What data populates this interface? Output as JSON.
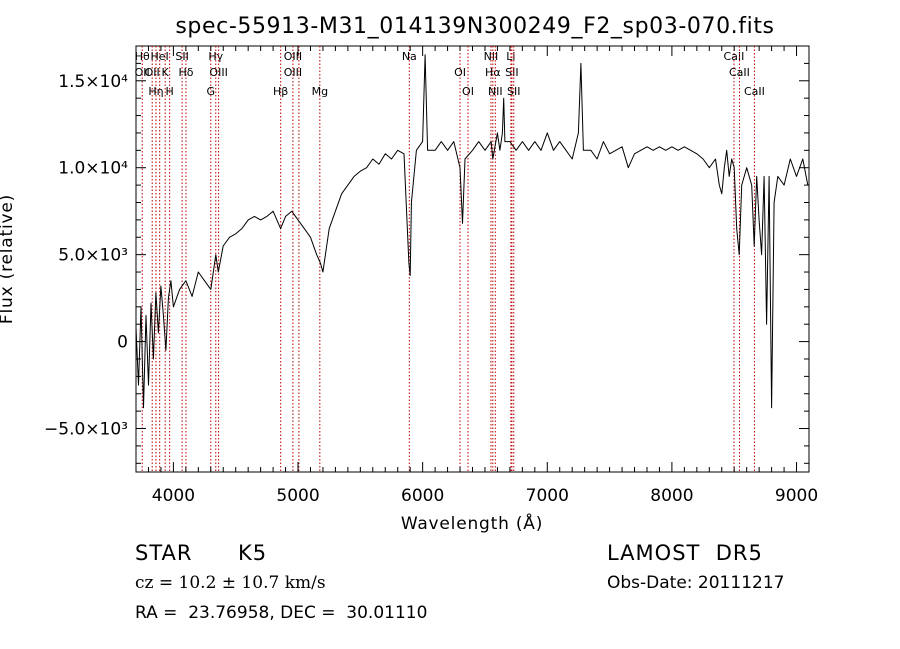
{
  "chart_data": {
    "type": "line",
    "title": "spec-55913-M31_014139N300249_F2_sp03-070.fits",
    "xlabel": "Wavelength (Å)",
    "ylabel": "Flux (relative)",
    "xlim": [
      3700,
      9100
    ],
    "ylim": [
      -7500,
      17000
    ],
    "x_ticks": [
      4000,
      5000,
      6000,
      7000,
      8000,
      9000
    ],
    "y_ticks": [
      {
        "value": -5000,
        "label": "−5.0×10³"
      },
      {
        "value": 0,
        "label": "0"
      },
      {
        "value": 5000,
        "label": "5.0×10³"
      },
      {
        "value": 10000,
        "label": "1.0×10⁴"
      },
      {
        "value": 15000,
        "label": "1.5×10⁴"
      }
    ],
    "grid": false,
    "line_color": "#000000",
    "marker_color": "#bb0000",
    "series": [
      {
        "values": [
          [
            3700,
            800
          ],
          [
            3720,
            -2500
          ],
          [
            3740,
            2000
          ],
          [
            3760,
            -3800
          ],
          [
            3780,
            1500
          ],
          [
            3800,
            -2500
          ],
          [
            3820,
            2200
          ],
          [
            3840,
            -1000
          ],
          [
            3860,
            2800
          ],
          [
            3880,
            500
          ],
          [
            3900,
            3200
          ],
          [
            3920,
            1500
          ],
          [
            3940,
            -500
          ],
          [
            3960,
            2500
          ],
          [
            3980,
            3500
          ],
          [
            4000,
            2000
          ],
          [
            4050,
            3000
          ],
          [
            4100,
            3500
          ],
          [
            4150,
            2600
          ],
          [
            4200,
            4000
          ],
          [
            4250,
            3500
          ],
          [
            4300,
            3000
          ],
          [
            4340,
            5000
          ],
          [
            4360,
            4000
          ],
          [
            4400,
            5500
          ],
          [
            4450,
            6000
          ],
          [
            4500,
            6200
          ],
          [
            4550,
            6500
          ],
          [
            4600,
            7000
          ],
          [
            4650,
            7200
          ],
          [
            4700,
            7000
          ],
          [
            4750,
            7200
          ],
          [
            4800,
            7500
          ],
          [
            4860,
            6500
          ],
          [
            4900,
            7200
          ],
          [
            4950,
            7500
          ],
          [
            5000,
            7000
          ],
          [
            5050,
            6500
          ],
          [
            5100,
            6000
          ],
          [
            5150,
            5000
          ],
          [
            5180,
            4500
          ],
          [
            5200,
            4000
          ],
          [
            5250,
            6500
          ],
          [
            5300,
            7500
          ],
          [
            5350,
            8500
          ],
          [
            5400,
            9000
          ],
          [
            5450,
            9500
          ],
          [
            5500,
            9800
          ],
          [
            5550,
            10000
          ],
          [
            5600,
            10500
          ],
          [
            5650,
            10200
          ],
          [
            5700,
            10800
          ],
          [
            5750,
            10500
          ],
          [
            5800,
            11000
          ],
          [
            5850,
            10800
          ],
          [
            5890,
            4500
          ],
          [
            5900,
            3800
          ],
          [
            5910,
            8000
          ],
          [
            5950,
            11000
          ],
          [
            6000,
            11500
          ],
          [
            6020,
            16500
          ],
          [
            6040,
            11000
          ],
          [
            6100,
            11000
          ],
          [
            6150,
            11500
          ],
          [
            6200,
            11000
          ],
          [
            6250,
            11500
          ],
          [
            6300,
            10000
          ],
          [
            6320,
            6800
          ],
          [
            6340,
            10500
          ],
          [
            6400,
            11000
          ],
          [
            6450,
            11500
          ],
          [
            6500,
            11000
          ],
          [
            6550,
            11500
          ],
          [
            6563,
            10500
          ],
          [
            6600,
            12000
          ],
          [
            6620,
            11000
          ],
          [
            6640,
            12000
          ],
          [
            6650,
            14000
          ],
          [
            6660,
            11500
          ],
          [
            6700,
            11500
          ],
          [
            6750,
            11000
          ],
          [
            6800,
            11500
          ],
          [
            6850,
            11000
          ],
          [
            6900,
            11500
          ],
          [
            6950,
            11000
          ],
          [
            7000,
            12000
          ],
          [
            7050,
            11000
          ],
          [
            7100,
            11500
          ],
          [
            7150,
            11000
          ],
          [
            7200,
            10500
          ],
          [
            7250,
            12000
          ],
          [
            7270,
            16000
          ],
          [
            7290,
            11000
          ],
          [
            7350,
            11000
          ],
          [
            7400,
            10500
          ],
          [
            7450,
            11500
          ],
          [
            7500,
            10800
          ],
          [
            7550,
            11000
          ],
          [
            7600,
            11200
          ],
          [
            7650,
            10000
          ],
          [
            7700,
            10800
          ],
          [
            7750,
            11000
          ],
          [
            7800,
            11200
          ],
          [
            7850,
            11000
          ],
          [
            7900,
            11200
          ],
          [
            7950,
            11000
          ],
          [
            8000,
            11200
          ],
          [
            8050,
            11000
          ],
          [
            8100,
            11200
          ],
          [
            8150,
            11000
          ],
          [
            8200,
            10800
          ],
          [
            8250,
            10500
          ],
          [
            8300,
            10000
          ],
          [
            8350,
            10500
          ],
          [
            8380,
            9000
          ],
          [
            8400,
            8500
          ],
          [
            8420,
            10000
          ],
          [
            8440,
            11000
          ],
          [
            8460,
            9500
          ],
          [
            8480,
            10500
          ],
          [
            8500,
            10000
          ],
          [
            8520,
            6500
          ],
          [
            8540,
            5000
          ],
          [
            8560,
            9000
          ],
          [
            8600,
            10000
          ],
          [
            8640,
            9000
          ],
          [
            8660,
            5500
          ],
          [
            8680,
            9500
          ],
          [
            8700,
            7000
          ],
          [
            8720,
            5000
          ],
          [
            8740,
            9500
          ],
          [
            8760,
            1000
          ],
          [
            8780,
            9500
          ],
          [
            8800,
            -3800
          ],
          [
            8820,
            8000
          ],
          [
            8850,
            9500
          ],
          [
            8900,
            9000
          ],
          [
            8950,
            10500
          ],
          [
            9000,
            9500
          ],
          [
            9050,
            10500
          ],
          [
            9090,
            9000
          ]
        ]
      }
    ],
    "line_markers": [
      {
        "x": 3750,
        "labels": [
          "Hθ",
          "OII"
        ]
      },
      {
        "x": 3830,
        "labels": [
          "OII"
        ]
      },
      {
        "x": 3860,
        "labels": [
          "Hη"
        ]
      },
      {
        "x": 3890,
        "labels": [
          "HeI"
        ]
      },
      {
        "x": 3934,
        "labels": [
          "K"
        ]
      },
      {
        "x": 3970,
        "labels": [
          "H"
        ]
      },
      {
        "x": 4070,
        "labels": [
          "SII"
        ]
      },
      {
        "x": 4101,
        "labels": [
          "Hδ"
        ]
      },
      {
        "x": 4300,
        "labels": [
          "G"
        ]
      },
      {
        "x": 4340,
        "labels": [
          "Hγ"
        ]
      },
      {
        "x": 4363,
        "labels": [
          "OIII"
        ]
      },
      {
        "x": 4861,
        "labels": [
          "Hβ"
        ]
      },
      {
        "x": 4959,
        "labels": [
          "OIII",
          "OIII"
        ]
      },
      {
        "x": 5007,
        "labels": []
      },
      {
        "x": 5175,
        "labels": [
          "Mg"
        ]
      },
      {
        "x": 5893,
        "labels": [
          "Na"
        ]
      },
      {
        "x": 6300,
        "labels": [
          "OI"
        ]
      },
      {
        "x": 6364,
        "labels": [
          "OI"
        ]
      },
      {
        "x": 6548,
        "labels": [
          "NII"
        ]
      },
      {
        "x": 6563,
        "labels": [
          "Hα"
        ]
      },
      {
        "x": 6583,
        "labels": [
          "NII"
        ]
      },
      {
        "x": 6708,
        "labels": [
          "Li"
        ]
      },
      {
        "x": 6716,
        "labels": [
          "SII"
        ]
      },
      {
        "x": 6731,
        "labels": [
          "SII"
        ]
      },
      {
        "x": 8498,
        "labels": [
          "CaII"
        ]
      },
      {
        "x": 8542,
        "labels": [
          "CaII"
        ]
      },
      {
        "x": 8662,
        "labels": [
          "CaII"
        ]
      }
    ]
  },
  "info": {
    "object_class": "STAR",
    "subclass": "K5",
    "survey": "LAMOST  DR5",
    "redshift": "cz = 10.2 ± 10.7 km/s",
    "obs_date": "Obs-Date: 20111217",
    "coords": "RA =  23.76958, DEC =  30.01110"
  }
}
